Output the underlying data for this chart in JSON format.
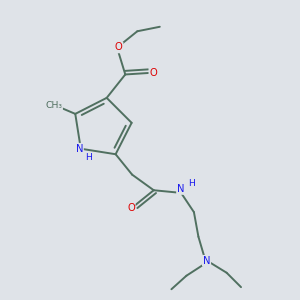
{
  "background_color": "#dfe3e8",
  "bond_color": "#507060",
  "atom_color_N": "#1a1aee",
  "atom_color_O": "#dd0000",
  "figsize": [
    3.0,
    3.0
  ],
  "dpi": 100,
  "xlim": [
    0,
    10
  ],
  "ylim": [
    0,
    10
  ]
}
